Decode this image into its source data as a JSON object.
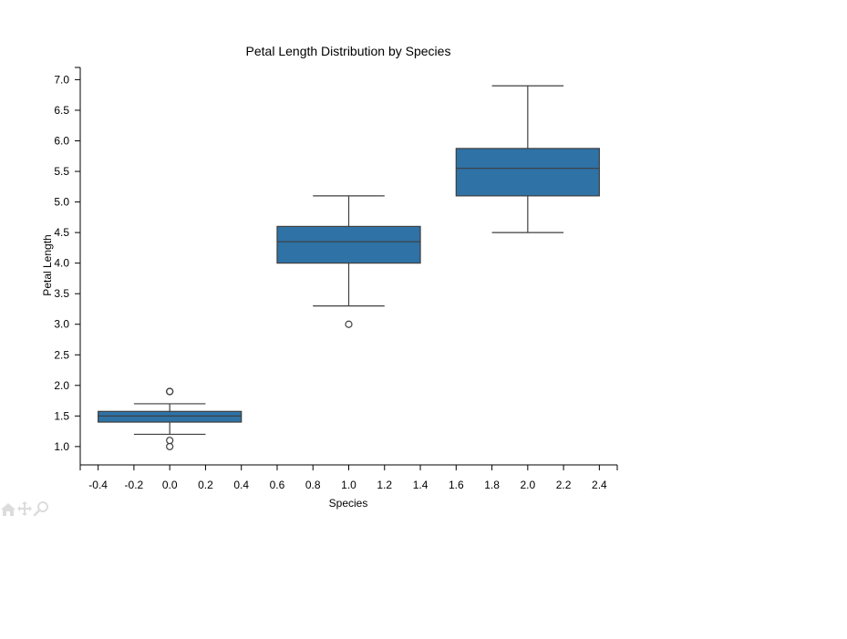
{
  "chart_data": {
    "type": "box",
    "title": "Petal Length Distribution by Species",
    "xlabel": "Species",
    "ylabel": "Petal Length",
    "xlim": [
      -0.5,
      2.5
    ],
    "ylim": [
      0.7,
      7.2
    ],
    "x_ticks": [
      -0.4,
      -0.2,
      0.0,
      0.2,
      0.4,
      0.6,
      0.8,
      1.0,
      1.2,
      1.4,
      1.6,
      1.8,
      2.0,
      2.2,
      2.4
    ],
    "x_tick_labels": [
      "-0.4",
      "-0.2",
      "0.0",
      "0.2",
      "0.4",
      "0.6",
      "0.8",
      "1.0",
      "1.2",
      "1.4",
      "1.6",
      "1.8",
      "2.0",
      "2.2",
      "2.4"
    ],
    "y_ticks": [
      1.0,
      1.5,
      2.0,
      2.5,
      3.0,
      3.5,
      4.0,
      4.5,
      5.0,
      5.5,
      6.0,
      6.5,
      7.0
    ],
    "y_tick_labels": [
      "1.0",
      "1.5",
      "2.0",
      "2.5",
      "3.0",
      "3.5",
      "4.0",
      "4.5",
      "5.0",
      "5.5",
      "6.0",
      "6.5",
      "7.0"
    ],
    "box_width": 0.8,
    "box_color": "#2e72a6",
    "grid": false,
    "boxes": [
      {
        "position": 0,
        "whisker_low": 1.2,
        "q1": 1.4,
        "median": 1.5,
        "q3": 1.575,
        "whisker_high": 1.7,
        "outliers": [
          1.9,
          1.9,
          1.1,
          1.0
        ]
      },
      {
        "position": 1,
        "whisker_low": 3.3,
        "q1": 4.0,
        "median": 4.35,
        "q3": 4.6,
        "whisker_high": 5.1,
        "outliers": [
          3.0
        ]
      },
      {
        "position": 2,
        "whisker_low": 4.5,
        "q1": 5.1,
        "median": 5.55,
        "q3": 5.875,
        "whisker_high": 6.9,
        "outliers": []
      }
    ]
  },
  "toolbar": {
    "icons": [
      "home-icon",
      "pan-icon",
      "zoom-icon"
    ]
  }
}
